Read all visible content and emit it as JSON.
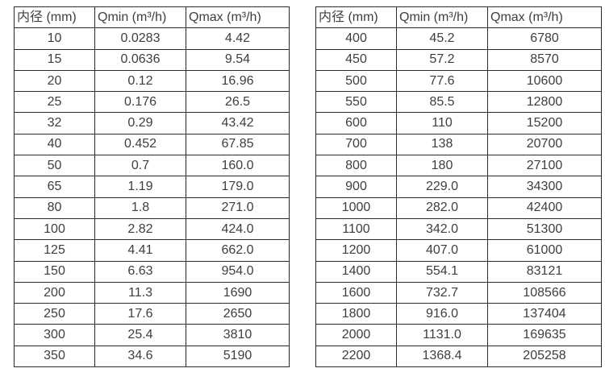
{
  "colors": {
    "background": "#ffffff",
    "border": "#2b2b2b",
    "text": "#3e3e3e"
  },
  "tables": [
    {
      "name": "flow-spec-small-diameters",
      "headers": [
        "内径 (mm)",
        "Qmin (m³/h)",
        "Qmax (m³/h)"
      ],
      "rows": [
        [
          "10",
          "0.0283",
          "4.42"
        ],
        [
          "15",
          "0.0636",
          "9.54"
        ],
        [
          "20",
          "0.12",
          "16.96"
        ],
        [
          "25",
          "0.176",
          "26.5"
        ],
        [
          "32",
          "0.29",
          "43.42"
        ],
        [
          "40",
          "0.452",
          "67.85"
        ],
        [
          "50",
          "0.7",
          "160.0"
        ],
        [
          "65",
          "1.19",
          "179.0"
        ],
        [
          "80",
          "1.8",
          "271.0"
        ],
        [
          "100",
          "2.82",
          "424.0"
        ],
        [
          "125",
          "4.41",
          "662.0"
        ],
        [
          "150",
          "6.63",
          "954.0"
        ],
        [
          "200",
          "11.3",
          "1690"
        ],
        [
          "250",
          "17.6",
          "2650"
        ],
        [
          "300",
          "25.4",
          "3810"
        ],
        [
          "350",
          "34.6",
          "5190"
        ]
      ]
    },
    {
      "name": "flow-spec-large-diameters",
      "headers": [
        "内径 (mm)",
        "Qmin (m³/h)",
        "Qmax (m³/h)"
      ],
      "rows": [
        [
          "400",
          "45.2",
          "6780"
        ],
        [
          "450",
          "57.2",
          "8570"
        ],
        [
          "500",
          "77.6",
          "10600"
        ],
        [
          "550",
          "85.5",
          "12800"
        ],
        [
          "600",
          "110",
          "15200"
        ],
        [
          "700",
          "138",
          "20700"
        ],
        [
          "800",
          "180",
          "27100"
        ],
        [
          "900",
          "229.0",
          "34300"
        ],
        [
          "1000",
          "282.0",
          "42400"
        ],
        [
          "1100",
          "342.0",
          "51300"
        ],
        [
          "1200",
          "407.0",
          "61000"
        ],
        [
          "1400",
          "554.1",
          "83121"
        ],
        [
          "1600",
          "732.7",
          "108566"
        ],
        [
          "1800",
          "916.0",
          "137404"
        ],
        [
          "2000",
          "1131.0",
          "169635"
        ],
        [
          "2200",
          "1368.4",
          "205258"
        ]
      ]
    }
  ]
}
